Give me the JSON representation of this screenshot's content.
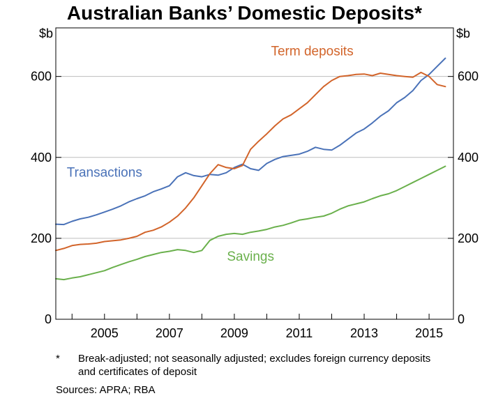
{
  "title": "Australian Banks’ Domestic Deposits*",
  "footnote": {
    "marker": "*",
    "text": "Break-adjusted; not seasonally adjusted; excludes foreign currency deposits and certificates of deposit"
  },
  "sources": "Sources:   APRA; RBA",
  "colors": {
    "transactions": "#4a72b8",
    "term_deposits": "#d2642a",
    "savings": "#6ab04c",
    "grid": "#bdbdbd",
    "frame": "#000000"
  },
  "chart_data": {
    "type": "line",
    "title": "Australian Banks’ Domestic Deposits*",
    "ylabel_left": "$b",
    "ylabel_right": "$b",
    "ylim": [
      0,
      720
    ],
    "xlim": [
      2003.5,
      2015.75
    ],
    "yticks": [
      0,
      200,
      400,
      600
    ],
    "ytick_labels": [
      "0",
      "200",
      "400",
      "600"
    ],
    "xticks": [
      2005,
      2007,
      2009,
      2011,
      2013,
      2015
    ],
    "xtick_labels": [
      "2005",
      "2007",
      "2009",
      "2011",
      "2013",
      "2015"
    ],
    "grid": true,
    "legend": "inline labels",
    "series": [
      {
        "name": "Transactions",
        "key": "transactions",
        "x": [
          2003.5,
          2003.75,
          2004.0,
          2004.25,
          2004.5,
          2004.75,
          2005.0,
          2005.25,
          2005.5,
          2005.75,
          2006.0,
          2006.25,
          2006.5,
          2006.75,
          2007.0,
          2007.25,
          2007.5,
          2007.75,
          2008.0,
          2008.25,
          2008.5,
          2008.75,
          2009.0,
          2009.25,
          2009.5,
          2009.75,
          2010.0,
          2010.25,
          2010.5,
          2010.75,
          2011.0,
          2011.25,
          2011.5,
          2011.75,
          2012.0,
          2012.25,
          2012.5,
          2012.75,
          2013.0,
          2013.25,
          2013.5,
          2013.75,
          2014.0,
          2014.25,
          2014.5,
          2014.75,
          2015.0,
          2015.25,
          2015.5
        ],
        "values": [
          235,
          234,
          242,
          248,
          252,
          258,
          265,
          272,
          280,
          290,
          298,
          305,
          315,
          322,
          330,
          352,
          362,
          355,
          352,
          358,
          356,
          362,
          375,
          383,
          372,
          368,
          385,
          395,
          402,
          405,
          408,
          415,
          425,
          420,
          418,
          430,
          445,
          460,
          470,
          485,
          502,
          515,
          535,
          548,
          565,
          590,
          605,
          625,
          645
        ]
      },
      {
        "name": "Term deposits",
        "key": "term_deposits",
        "x": [
          2003.5,
          2003.75,
          2004.0,
          2004.25,
          2004.5,
          2004.75,
          2005.0,
          2005.25,
          2005.5,
          2005.75,
          2006.0,
          2006.25,
          2006.5,
          2006.75,
          2007.0,
          2007.25,
          2007.5,
          2007.75,
          2008.0,
          2008.25,
          2008.5,
          2008.75,
          2009.0,
          2009.25,
          2009.5,
          2009.75,
          2010.0,
          2010.25,
          2010.5,
          2010.75,
          2011.0,
          2011.25,
          2011.5,
          2011.75,
          2012.0,
          2012.25,
          2012.5,
          2012.75,
          2013.0,
          2013.25,
          2013.5,
          2013.75,
          2014.0,
          2014.25,
          2014.5,
          2014.75,
          2015.0,
          2015.25,
          2015.5
        ],
        "values": [
          170,
          175,
          182,
          185,
          186,
          188,
          192,
          194,
          196,
          200,
          205,
          215,
          220,
          228,
          240,
          255,
          275,
          300,
          330,
          360,
          382,
          375,
          372,
          380,
          420,
          440,
          458,
          478,
          495,
          505,
          520,
          535,
          555,
          575,
          590,
          600,
          602,
          605,
          606,
          602,
          608,
          605,
          602,
          600,
          598,
          610,
          600,
          580,
          575
        ]
      },
      {
        "name": "Savings",
        "key": "savings",
        "x": [
          2003.5,
          2003.75,
          2004.0,
          2004.25,
          2004.5,
          2004.75,
          2005.0,
          2005.25,
          2005.5,
          2005.75,
          2006.0,
          2006.25,
          2006.5,
          2006.75,
          2007.0,
          2007.25,
          2007.5,
          2007.75,
          2008.0,
          2008.25,
          2008.5,
          2008.75,
          2009.0,
          2009.25,
          2009.5,
          2009.75,
          2010.0,
          2010.25,
          2010.5,
          2010.75,
          2011.0,
          2011.25,
          2011.5,
          2011.75,
          2012.0,
          2012.25,
          2012.5,
          2012.75,
          2013.0,
          2013.25,
          2013.5,
          2013.75,
          2014.0,
          2014.25,
          2014.5,
          2014.75,
          2015.0,
          2015.25,
          2015.5
        ],
        "values": [
          100,
          98,
          102,
          105,
          110,
          115,
          120,
          128,
          135,
          142,
          148,
          155,
          160,
          165,
          168,
          172,
          170,
          165,
          170,
          195,
          205,
          210,
          212,
          210,
          215,
          218,
          222,
          228,
          232,
          238,
          245,
          248,
          252,
          255,
          262,
          272,
          280,
          285,
          290,
          298,
          305,
          310,
          318,
          328,
          338,
          348,
          358,
          368,
          378
        ]
      }
    ],
    "annotations": [
      {
        "key": "transactions",
        "text": "Transactions",
        "x": 2005.0,
        "y": 352
      },
      {
        "key": "term_deposits",
        "text": "Term deposits",
        "x": 2011.4,
        "y": 652
      },
      {
        "key": "savings",
        "text": "Savings",
        "x": 2009.5,
        "y": 145
      }
    ]
  }
}
